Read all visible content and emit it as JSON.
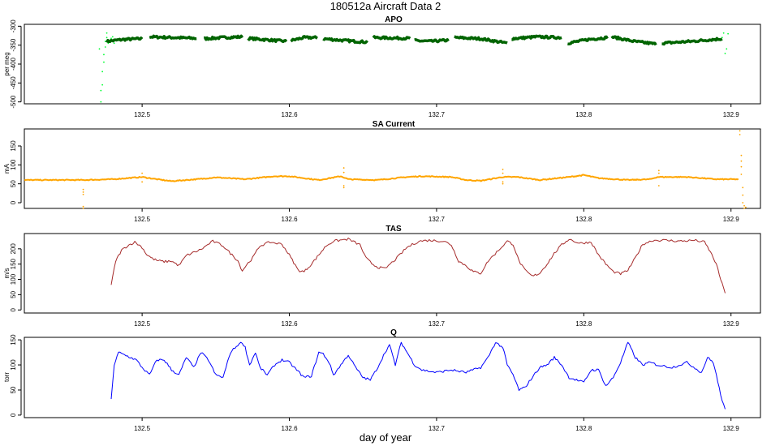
{
  "figure": {
    "title": "180512a   Aircraft Data 2",
    "xlabel": "day of year"
  },
  "chart_data": [
    {
      "type": "scatter",
      "title": "APO",
      "ylabel": "per meg",
      "xlabel": "",
      "xlim": [
        132.42,
        132.92
      ],
      "ylim": [
        -505,
        -295
      ],
      "x_ticks": [
        132.5,
        132.6,
        132.7,
        132.8,
        132.9
      ],
      "y_ticks": [
        -500,
        -450,
        -400,
        -350,
        -300
      ],
      "grid": false,
      "series": [
        {
          "color": "#00ff33",
          "style": "points",
          "points": [
            [
              132.471,
              -360
            ],
            [
              132.472,
              -500
            ],
            [
              132.472,
              -470
            ],
            [
              132.473,
              -455
            ],
            [
              132.473,
              -420
            ],
            [
              132.474,
              -395
            ],
            [
              132.474,
              -375
            ],
            [
              132.475,
              -355
            ],
            [
              132.475,
              -340
            ],
            [
              132.476,
              -330
            ],
            [
              132.476,
              -318
            ],
            [
              132.477,
              -345
            ],
            [
              132.478,
              -338
            ],
            [
              132.479,
              -332
            ],
            [
              132.48,
              -328
            ],
            [
              132.481,
              -345
            ],
            [
              132.482,
              -335
            ],
            [
              132.894,
              -330
            ],
            [
              132.895,
              -318
            ],
            [
              132.896,
              -372
            ],
            [
              132.897,
              -360
            ],
            [
              132.898,
              -320
            ]
          ]
        },
        {
          "color": "#006400",
          "style": "band",
          "segments": [
            {
              "x": [
                132.476,
                132.487,
                132.5
              ],
              "y": [
                -340,
                -335,
                -333
              ]
            },
            {
              "x": [
                132.505,
                132.521,
                132.537
              ],
              "y": [
                -328,
                -330,
                -332
              ]
            },
            {
              "x": [
                132.542,
                132.555,
                132.568
              ],
              "y": [
                -333,
                -330,
                -328
              ]
            },
            {
              "x": [
                132.572,
                132.585,
                132.598
              ],
              "y": [
                -332,
                -336,
                -340
              ]
            },
            {
              "x": [
                132.601,
                132.61,
                132.619
              ],
              "y": [
                -338,
                -330,
                -330
              ]
            },
            {
              "x": [
                132.623,
                132.638,
                132.653
              ],
              "y": [
                -333,
                -338,
                -342
              ]
            },
            {
              "x": [
                132.657,
                132.669,
                132.682
              ],
              "y": [
                -330,
                -331,
                -332
              ]
            },
            {
              "x": [
                132.685,
                132.696,
                132.708
              ],
              "y": [
                -338,
                -340,
                -337
              ]
            },
            {
              "x": [
                132.712,
                132.73,
                132.748
              ],
              "y": [
                -330,
                -333,
                -345
              ]
            },
            {
              "x": [
                132.751,
                132.768,
                132.785
              ],
              "y": [
                -333,
                -328,
                -330
              ]
            },
            {
              "x": [
                132.789,
                132.803,
                132.816
              ],
              "y": [
                -345,
                -335,
                -330
              ]
            },
            {
              "x": [
                132.819,
                132.834,
                132.849
              ],
              "y": [
                -328,
                -340,
                -347
              ]
            },
            {
              "x": [
                132.853,
                132.873,
                132.894
              ],
              "y": [
                -345,
                -340,
                -333
              ]
            }
          ]
        }
      ]
    },
    {
      "type": "scatter",
      "title": "SA Current",
      "ylabel": "mA",
      "xlabel": "",
      "xlim": [
        132.42,
        132.92
      ],
      "ylim": [
        -15,
        195
      ],
      "x_ticks": [
        132.5,
        132.6,
        132.7,
        132.8,
        132.9
      ],
      "y_ticks": [
        0,
        50,
        100,
        150
      ],
      "grid": false,
      "series": [
        {
          "color": "#ffa500",
          "style": "band",
          "x": [
            132.42,
            132.44,
            132.46,
            132.48,
            132.5,
            132.51,
            132.52,
            132.54,
            132.55,
            132.57,
            132.59,
            132.6,
            132.62,
            132.635,
            132.64,
            132.66,
            132.68,
            132.69,
            132.71,
            132.72,
            132.73,
            132.745,
            132.755,
            132.77,
            132.79,
            132.8,
            132.81,
            132.83,
            132.845,
            132.85,
            132.87,
            132.89,
            132.905
          ],
          "y": [
            60,
            60,
            60,
            62,
            68,
            62,
            57,
            63,
            67,
            62,
            70,
            70,
            60,
            70,
            62,
            60,
            68,
            70,
            68,
            60,
            58,
            68,
            68,
            60,
            68,
            73,
            65,
            60,
            62,
            68,
            68,
            62,
            62
          ]
        },
        {
          "color": "#ffa500",
          "style": "points",
          "points": [
            [
              132.46,
              35
            ],
            [
              132.46,
              28
            ],
            [
              132.46,
              22
            ],
            [
              132.46,
              -10
            ],
            [
              132.46,
              -15
            ],
            [
              132.5,
              78
            ],
            [
              132.5,
              55
            ],
            [
              132.637,
              92
            ],
            [
              132.637,
              80
            ],
            [
              132.637,
              45
            ],
            [
              132.637,
              40
            ],
            [
              132.745,
              88
            ],
            [
              132.745,
              78
            ],
            [
              132.745,
              55
            ],
            [
              132.745,
              50
            ],
            [
              132.851,
              85
            ],
            [
              132.851,
              78
            ],
            [
              132.851,
              45
            ],
            [
              132.906,
              190
            ],
            [
              132.906,
              180
            ],
            [
              132.907,
              125
            ],
            [
              132.907,
              110
            ],
            [
              132.907,
              95
            ],
            [
              132.907,
              75
            ],
            [
              132.908,
              40
            ],
            [
              132.908,
              20
            ],
            [
              132.908,
              0
            ],
            [
              132.909,
              -8
            ],
            [
              132.909,
              -15
            ],
            [
              132.91,
              -12
            ]
          ]
        }
      ]
    },
    {
      "type": "line",
      "title": "TAS",
      "ylabel": "m/s",
      "xlabel": "",
      "xlim": [
        132.42,
        132.92
      ],
      "ylim": [
        -10,
        250
      ],
      "x_ticks": [
        132.5,
        132.6,
        132.7,
        132.8,
        132.9
      ],
      "y_ticks": [
        0,
        50,
        100,
        150,
        200
      ],
      "grid": false,
      "series": [
        {
          "color": "#a52a2a",
          "x": [
            132.479,
            132.482,
            132.486,
            132.49,
            132.495,
            132.5,
            132.503,
            132.507,
            132.51,
            132.515,
            132.52,
            132.525,
            132.53,
            132.54,
            132.548,
            132.555,
            132.56,
            132.565,
            132.568,
            132.571,
            132.575,
            132.58,
            132.587,
            132.595,
            132.6,
            132.603,
            132.606,
            132.61,
            132.615,
            132.62,
            132.625,
            132.63,
            132.64,
            132.648,
            132.652,
            132.656,
            132.66,
            132.665,
            132.672,
            132.68,
            132.688,
            132.695,
            132.705,
            132.71,
            132.715,
            132.72,
            132.725,
            132.73,
            132.735,
            132.742,
            132.748,
            132.752,
            132.756,
            132.76,
            132.765,
            132.77,
            132.775,
            132.78,
            132.785,
            132.79,
            132.797,
            132.805,
            132.81,
            132.815,
            132.82,
            132.825,
            132.83,
            132.835,
            132.84,
            132.847,
            132.855,
            132.865,
            132.875,
            132.882,
            132.886,
            132.89,
            132.893,
            132.896
          ],
          "y": [
            82,
            160,
            195,
            210,
            222,
            205,
            182,
            168,
            162,
            158,
            160,
            145,
            178,
            198,
            225,
            210,
            185,
            162,
            128,
            148,
            170,
            210,
            222,
            215,
            180,
            155,
            130,
            125,
            150,
            180,
            210,
            225,
            232,
            213,
            170,
            152,
            140,
            135,
            165,
            205,
            225,
            228,
            225,
            213,
            160,
            145,
            125,
            120,
            160,
            195,
            225,
            215,
            160,
            130,
            110,
            120,
            150,
            185,
            213,
            232,
            218,
            222,
            180,
            150,
            125,
            118,
            130,
            170,
            215,
            228,
            228,
            225,
            228,
            222,
            190,
            150,
            100,
            55
          ]
        }
      ]
    },
    {
      "type": "line",
      "title": "Q",
      "ylabel": "torr",
      "xlabel": "day of year",
      "xlim": [
        132.42,
        132.92
      ],
      "ylim": [
        -5,
        155
      ],
      "x_ticks": [
        132.5,
        132.6,
        132.7,
        132.8,
        132.9
      ],
      "y_ticks": [
        0,
        50,
        100,
        150
      ],
      "grid": false,
      "series": [
        {
          "color": "#0000ff",
          "x": [
            132.479,
            132.481,
            132.484,
            132.488,
            132.492,
            132.496,
            132.5,
            132.505,
            132.51,
            132.515,
            132.52,
            132.525,
            132.53,
            132.535,
            132.54,
            132.545,
            132.55,
            132.555,
            132.56,
            132.565,
            132.568,
            132.57,
            132.573,
            132.577,
            132.58,
            132.585,
            132.59,
            132.595,
            132.6,
            132.605,
            132.61,
            132.615,
            132.62,
            132.623,
            132.627,
            132.63,
            132.635,
            132.64,
            132.645,
            132.65,
            132.655,
            132.66,
            132.665,
            132.668,
            132.672,
            132.676,
            132.68,
            132.685,
            132.69,
            132.7,
            132.71,
            132.72,
            132.73,
            132.735,
            132.74,
            132.745,
            132.748,
            132.752,
            132.756,
            132.76,
            132.765,
            132.77,
            132.775,
            132.78,
            132.785,
            132.79,
            132.795,
            132.8,
            132.805,
            132.81,
            132.815,
            132.82,
            132.825,
            132.83,
            132.835,
            132.84,
            132.845,
            132.85,
            132.86,
            132.87,
            132.88,
            132.884,
            132.886,
            132.888,
            132.89,
            132.893,
            132.896
          ],
          "y": [
            32,
            100,
            125,
            120,
            115,
            110,
            95,
            80,
            110,
            110,
            90,
            80,
            115,
            95,
            125,
            110,
            80,
            75,
            125,
            140,
            145,
            135,
            100,
            125,
            95,
            80,
            100,
            110,
            105,
            90,
            75,
            78,
            125,
            122,
            105,
            80,
            100,
            120,
            95,
            75,
            70,
            95,
            125,
            140,
            100,
            145,
            125,
            100,
            90,
            85,
            90,
            85,
            95,
            115,
            145,
            135,
            100,
            80,
            50,
            55,
            75,
            95,
            100,
            115,
            100,
            75,
            70,
            65,
            90,
            90,
            58,
            75,
            105,
            145,
            115,
            100,
            105,
            100,
            95,
            105,
            85,
            115,
            110,
            105,
            80,
            40,
            12
          ]
        }
      ]
    }
  ]
}
